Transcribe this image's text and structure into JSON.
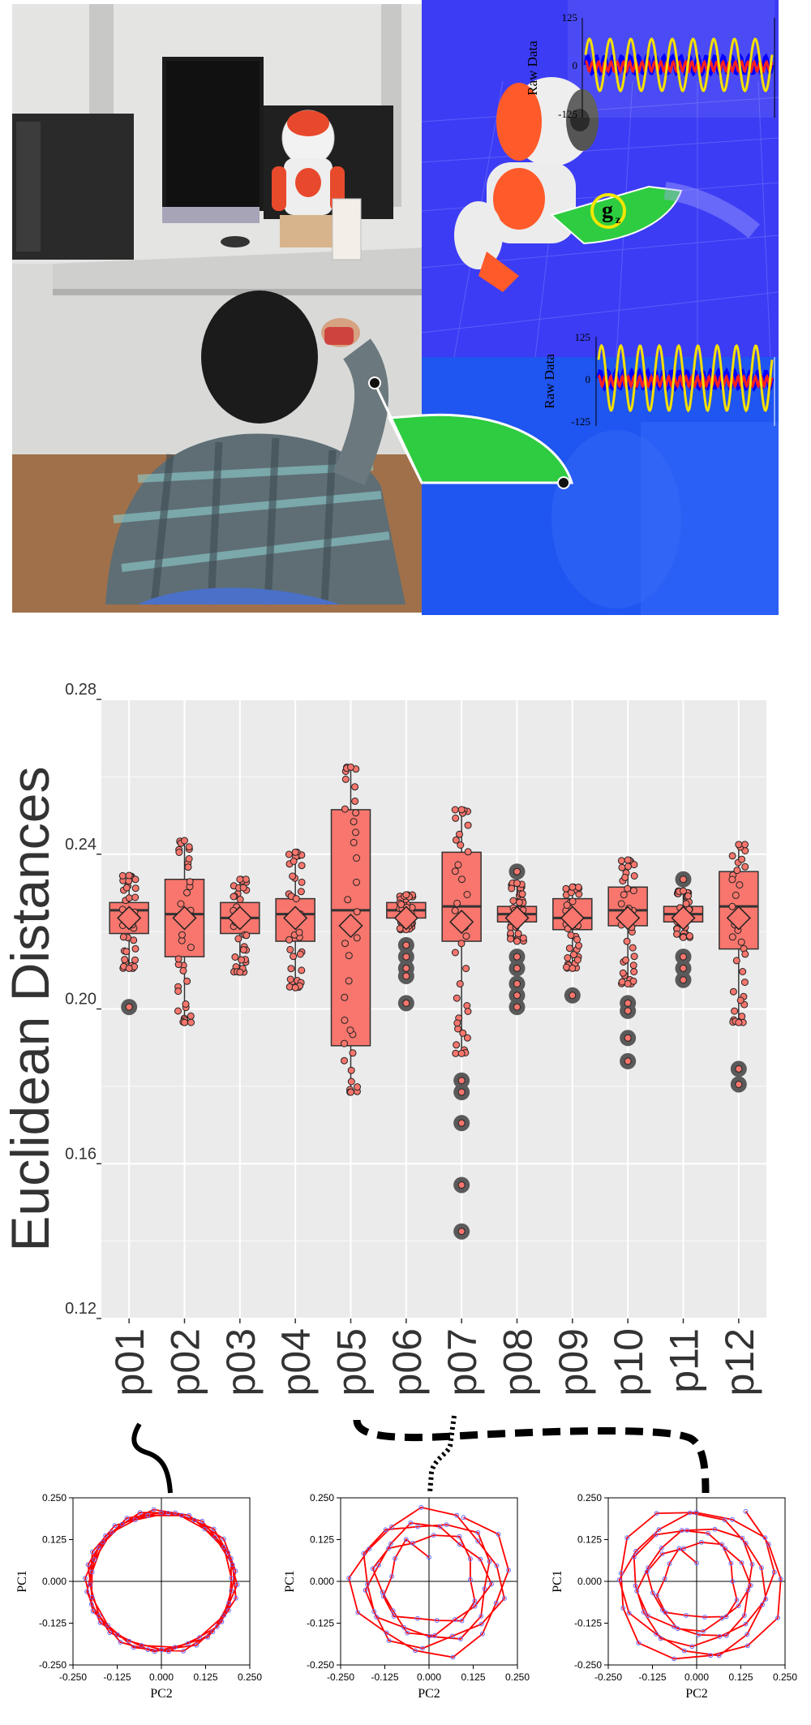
{
  "colors": {
    "box_fill": "#f8766d",
    "box_stroke": "#333333",
    "panel_bg": "#ebebeb",
    "grid": "#ffffff",
    "outlier_halo": "#5a5a5a",
    "pca_line": "#ff0000",
    "pca_point": "#6666ff",
    "sim_bg": "#3b3bf5",
    "sim_lower": "#1a55f0",
    "sine": "#f5e000",
    "wedge": "#2ecc40"
  },
  "photo": {
    "inset_top": {
      "ylabel": "Raw Data",
      "ticks": [
        "125",
        "0",
        "-125"
      ]
    },
    "inset_bottom": {
      "ylabel": "Raw Data",
      "ticks": [
        "125",
        "0",
        "-125"
      ]
    },
    "gz_label": "g",
    "gz_sub": "z"
  },
  "chart_data": [
    {
      "type": "box",
      "title": "",
      "ylabel": "Euclidean Distances",
      "xlabel": "",
      "ylim": [
        0.12,
        0.28
      ],
      "yticks": [
        0.12,
        0.16,
        0.2,
        0.24,
        0.28
      ],
      "ytick_labels": [
        "0.12",
        "0.16",
        "0.20",
        "0.24",
        "0.28"
      ],
      "categories": [
        "p01",
        "p02",
        "p03",
        "p04",
        "p05",
        "p06",
        "p07",
        "p08",
        "p09",
        "p10",
        "p11",
        "p12"
      ],
      "boxes": [
        {
          "q1": 0.2195,
          "median": 0.2255,
          "q3": 0.2275,
          "whisker_low": 0.2105,
          "whisker_high": 0.2345,
          "mean": 0.2235,
          "outliers": [
            0.2005
          ]
        },
        {
          "q1": 0.2135,
          "median": 0.2245,
          "q3": 0.2335,
          "whisker_low": 0.1965,
          "whisker_high": 0.2435,
          "mean": 0.2235,
          "outliers": []
        },
        {
          "q1": 0.2195,
          "median": 0.2235,
          "q3": 0.2275,
          "whisker_low": 0.2095,
          "whisker_high": 0.2335,
          "mean": 0.2235,
          "outliers": []
        },
        {
          "q1": 0.2175,
          "median": 0.2245,
          "q3": 0.2285,
          "whisker_low": 0.2055,
          "whisker_high": 0.2405,
          "mean": 0.2235,
          "outliers": []
        },
        {
          "q1": 0.1905,
          "median": 0.2255,
          "q3": 0.2515,
          "whisker_low": 0.1785,
          "whisker_high": 0.2625,
          "mean": 0.2215,
          "outliers": []
        },
        {
          "q1": 0.2235,
          "median": 0.2255,
          "q3": 0.2275,
          "whisker_low": 0.2205,
          "whisker_high": 0.2295,
          "mean": 0.2235,
          "outliers": [
            0.2015,
            0.2085,
            0.2105,
            0.2135,
            0.2165
          ]
        },
        {
          "q1": 0.2175,
          "median": 0.2265,
          "q3": 0.2405,
          "whisker_low": 0.1885,
          "whisker_high": 0.2515,
          "mean": 0.2225,
          "outliers": [
            0.1425,
            0.1545,
            0.1705,
            0.1785,
            0.1815
          ]
        },
        {
          "q1": 0.2225,
          "median": 0.2245,
          "q3": 0.2265,
          "whisker_low": 0.2175,
          "whisker_high": 0.2325,
          "mean": 0.2235,
          "outliers": [
            0.2005,
            0.2035,
            0.2065,
            0.2105,
            0.2135,
            0.2355
          ]
        },
        {
          "q1": 0.2205,
          "median": 0.2235,
          "q3": 0.2285,
          "whisker_low": 0.2105,
          "whisker_high": 0.2315,
          "mean": 0.2235,
          "outliers": [
            0.2035
          ]
        },
        {
          "q1": 0.2215,
          "median": 0.2255,
          "q3": 0.2315,
          "whisker_low": 0.2065,
          "whisker_high": 0.2385,
          "mean": 0.2235,
          "outliers": [
            0.1865,
            0.1925,
            0.1995,
            0.2015
          ]
        },
        {
          "q1": 0.2225,
          "median": 0.2245,
          "q3": 0.2265,
          "whisker_low": 0.2185,
          "whisker_high": 0.2305,
          "mean": 0.2235,
          "outliers": [
            0.2075,
            0.2105,
            0.2135,
            0.2335
          ]
        },
        {
          "q1": 0.2155,
          "median": 0.2265,
          "q3": 0.2355,
          "whisker_low": 0.1965,
          "whisker_high": 0.2425,
          "mean": 0.2235,
          "outliers": [
            0.1805,
            0.1845
          ]
        }
      ]
    },
    {
      "type": "line",
      "title": "",
      "xlabel": "PC2",
      "ylabel": "PC1",
      "xlim": [
        -0.25,
        0.25
      ],
      "ylim": [
        -0.25,
        0.25
      ],
      "tick_labels": [
        "-0.250",
        "-0.125",
        "0.000",
        "0.125",
        "0.250"
      ],
      "x_tick_labels": [
        "-0.250",
        "-0.125",
        "0.000",
        "0.125",
        "0.250"
      ],
      "y_tick_labels": [
        "-0.250",
        "-0.125",
        "0.000",
        "0.125",
        "0.250"
      ],
      "pattern": "tight circular loops"
    },
    {
      "type": "line",
      "title": "",
      "xlabel": "PC2",
      "ylabel": "PC1",
      "xlim": [
        -0.25,
        0.25
      ],
      "ylim": [
        -0.25,
        0.25
      ],
      "x_tick_labels": [
        "-0.250",
        "-0.125",
        "0.000",
        "0.125",
        "0.250"
      ],
      "y_tick_labels": [
        "-0.250",
        "-0.125",
        "0.000",
        "0.125",
        "0.250"
      ],
      "pattern": "loose loops starting inside"
    },
    {
      "type": "line",
      "title": "",
      "xlabel": "PC2",
      "ylabel": "PC1",
      "xlim": [
        -0.25,
        0.25
      ],
      "ylim": [
        -0.25,
        0.25
      ],
      "x_tick_labels": [
        "-0.250",
        "-0.125",
        "0.000",
        "0.125",
        "0.250"
      ],
      "y_tick_labels": [
        "-0.250",
        "-0.125",
        "0.000",
        "0.125",
        "0.250"
      ],
      "pattern": "spiral of widening loops"
    }
  ]
}
